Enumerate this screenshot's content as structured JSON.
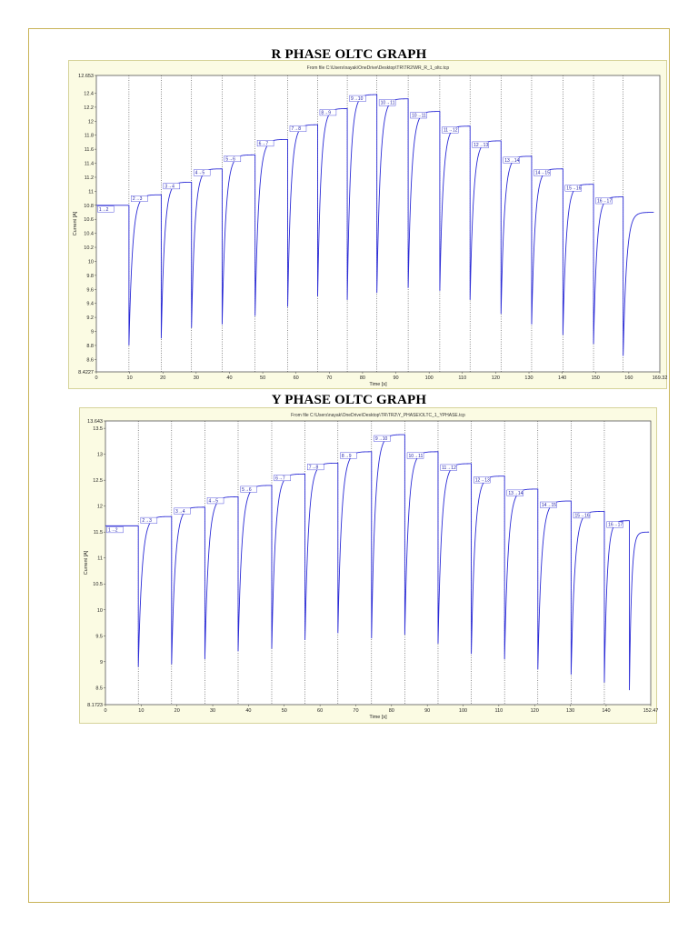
{
  "chart_data": [
    {
      "type": "line",
      "title": "R PHASE OLTC GRAPH",
      "subtitle": "From file C:\\Users\\nayak\\OneDrive\\Desktop\\TR\\TR2\\WR_R_1_oltc.tcp",
      "xlabel": "Time [s]",
      "ylabel": "Current [A]",
      "xlim": [
        0,
        169.32
      ],
      "ylim": [
        8.4227,
        12.653
      ],
      "x_ticks": [
        "0",
        "10",
        "20",
        "30",
        "40",
        "50",
        "60",
        "70",
        "80",
        "90",
        "100",
        "110",
        "120",
        "130",
        "140",
        "150",
        "160",
        "169.32"
      ],
      "x_tick_values": [
        0,
        10,
        20,
        30,
        40,
        50,
        60,
        70,
        80,
        90,
        100,
        110,
        120,
        130,
        140,
        150,
        160,
        169.32
      ],
      "y_ticks": [
        "8.4227",
        "8.6",
        "8.8",
        "9",
        "9.2",
        "9.4",
        "9.6",
        "9.8",
        "10",
        "10.2",
        "10.4",
        "10.6",
        "10.8",
        "11",
        "11.2",
        "11.4",
        "11.6",
        "11.8",
        "12",
        "12.2",
        "12.4",
        "12.653"
      ],
      "y_tick_values": [
        8.4227,
        8.6,
        8.8,
        9,
        9.2,
        9.4,
        9.6,
        9.8,
        10,
        10.2,
        10.4,
        10.6,
        10.8,
        11,
        11.2,
        11.4,
        11.6,
        11.8,
        12,
        12.2,
        12.4,
        12.653
      ],
      "grid": "vertical dotted at tap changes",
      "series_color": "#2b2bd6",
      "tap_change_times": [
        9.8,
        19.5,
        28.6,
        37.8,
        47.7,
        57.5,
        66.5,
        75.4,
        84.3,
        93.7,
        103.2,
        112.3,
        121.6,
        130.8,
        140.2,
        149.4,
        158.3
      ],
      "segments": [
        {
          "label": "1→2",
          "start": 0,
          "end": 9.8,
          "min": 10.8,
          "max": 10.8,
          "plateau": 10.8
        },
        {
          "label": "2→3",
          "start": 9.8,
          "end": 19.5,
          "min": 8.8,
          "max": 10.95,
          "plateau": 10.95
        },
        {
          "label": "3→4",
          "start": 19.5,
          "end": 28.6,
          "min": 8.9,
          "max": 11.13,
          "plateau": 11.13
        },
        {
          "label": "4→5",
          "start": 28.6,
          "end": 37.8,
          "min": 9.05,
          "max": 11.32,
          "plateau": 11.32
        },
        {
          "label": "5→6",
          "start": 37.8,
          "end": 47.7,
          "min": 9.1,
          "max": 11.52,
          "plateau": 11.52
        },
        {
          "label": "6→7",
          "start": 47.7,
          "end": 57.5,
          "min": 9.22,
          "max": 11.74,
          "plateau": 11.74
        },
        {
          "label": "7→8",
          "start": 57.5,
          "end": 66.5,
          "min": 9.35,
          "max": 11.95,
          "plateau": 11.95
        },
        {
          "label": "8→9",
          "start": 66.5,
          "end": 75.4,
          "min": 9.5,
          "max": 12.18,
          "plateau": 12.18
        },
        {
          "label": "9→10",
          "start": 75.4,
          "end": 84.3,
          "min": 9.45,
          "max": 12.38,
          "plateau": 12.38
        },
        {
          "label": "10→11",
          "start": 84.3,
          "end": 93.7,
          "min": 9.55,
          "max": 12.32,
          "plateau": 12.32
        },
        {
          "label": "10→11",
          "start": 93.7,
          "end": 103.2,
          "min": 9.62,
          "max": 12.14,
          "plateau": 12.14
        },
        {
          "label": "11→12",
          "start": 103.2,
          "end": 112.3,
          "min": 9.58,
          "max": 11.93,
          "plateau": 11.93
        },
        {
          "label": "12→13",
          "start": 112.3,
          "end": 121.6,
          "min": 9.45,
          "max": 11.72,
          "plateau": 11.72
        },
        {
          "label": "13→14",
          "start": 121.6,
          "end": 130.8,
          "min": 9.25,
          "max": 11.5,
          "plateau": 11.5
        },
        {
          "label": "14→15",
          "start": 130.8,
          "end": 140.2,
          "min": 9.1,
          "max": 11.32,
          "plateau": 11.32
        },
        {
          "label": "15→16",
          "start": 140.2,
          "end": 149.4,
          "min": 8.95,
          "max": 11.1,
          "plateau": 11.1
        },
        {
          "label": "16→17",
          "start": 149.4,
          "end": 158.3,
          "min": 8.82,
          "max": 10.92,
          "plateau": 10.92
        },
        {
          "label": "",
          "start": 158.3,
          "end": 167.5,
          "min": 8.65,
          "max": 10.7,
          "plateau": 10.7
        }
      ]
    },
    {
      "type": "line",
      "title": "Y PHASE OLTC GRAPH",
      "subtitle": "From file C:\\Users\\nayak\\OneDrive\\Desktop\\TR\\TR2\\Y_PHASE\\OLTC_1_YPHASE.tcp",
      "xlabel": "Time [s]",
      "ylabel": "Current [A]",
      "xlim": [
        0,
        152.47
      ],
      "ylim": [
        8.1723,
        13.643
      ],
      "x_ticks": [
        "0",
        "10",
        "20",
        "30",
        "40",
        "50",
        "60",
        "70",
        "80",
        "90",
        "100",
        "110",
        "120",
        "130",
        "140",
        "152.47"
      ],
      "x_tick_values": [
        0,
        10,
        20,
        30,
        40,
        50,
        60,
        70,
        80,
        90,
        100,
        110,
        120,
        130,
        140,
        152.47
      ],
      "y_ticks": [
        "8.1723",
        "8.5",
        "9",
        "9.5",
        "10",
        "10.5",
        "11",
        "11.5",
        "12",
        "12.5",
        "13",
        "13.5",
        "13.643"
      ],
      "y_tick_values": [
        8.1723,
        8.5,
        9,
        9.5,
        10,
        10.5,
        11,
        11.5,
        12,
        12.5,
        13,
        13.5,
        13.643
      ],
      "grid": "vertical dotted at tap changes",
      "series_color": "#2b2bd6",
      "tap_change_times": [
        9.2,
        18.5,
        27.8,
        37.1,
        46.5,
        55.8,
        65,
        74.4,
        83.7,
        93,
        102.3,
        111.6,
        120.9,
        130.2,
        139.5
      ],
      "segments": [
        {
          "label": "1→2",
          "start": 0,
          "end": 9.2,
          "min": 11.62,
          "max": 11.62,
          "plateau": 11.62
        },
        {
          "label": "2→3",
          "start": 9.2,
          "end": 18.5,
          "min": 8.9,
          "max": 11.8,
          "plateau": 11.8
        },
        {
          "label": "3→4",
          "start": 18.5,
          "end": 27.8,
          "min": 8.95,
          "max": 11.98,
          "plateau": 11.98
        },
        {
          "label": "4→5",
          "start": 27.8,
          "end": 37.1,
          "min": 9.05,
          "max": 12.18,
          "plateau": 12.18
        },
        {
          "label": "5→6",
          "start": 37.1,
          "end": 46.5,
          "min": 9.2,
          "max": 12.4,
          "plateau": 12.4
        },
        {
          "label": "6→7",
          "start": 46.5,
          "end": 55.8,
          "min": 9.25,
          "max": 12.62,
          "plateau": 12.62
        },
        {
          "label": "7→8",
          "start": 55.8,
          "end": 65,
          "min": 9.42,
          "max": 12.83,
          "plateau": 12.83
        },
        {
          "label": "8→9",
          "start": 65,
          "end": 74.4,
          "min": 9.55,
          "max": 13.05,
          "plateau": 13.05
        },
        {
          "label": "9→10",
          "start": 74.4,
          "end": 83.7,
          "min": 9.45,
          "max": 13.38,
          "plateau": 13.38
        },
        {
          "label": "10→11",
          "start": 83.7,
          "end": 93,
          "min": 9.52,
          "max": 13.05,
          "plateau": 13.05
        },
        {
          "label": "11→12",
          "start": 93,
          "end": 102.3,
          "min": 9.35,
          "max": 12.82,
          "plateau": 12.82
        },
        {
          "label": "12→13",
          "start": 102.3,
          "end": 111.6,
          "min": 9.15,
          "max": 12.58,
          "plateau": 12.58
        },
        {
          "label": "13→14",
          "start": 111.6,
          "end": 120.9,
          "min": 9.05,
          "max": 12.33,
          "plateau": 12.33
        },
        {
          "label": "14→15",
          "start": 120.9,
          "end": 130.2,
          "min": 8.85,
          "max": 12.1,
          "plateau": 12.1
        },
        {
          "label": "15→16",
          "start": 130.2,
          "end": 139.5,
          "min": 8.75,
          "max": 11.9,
          "plateau": 11.9
        },
        {
          "label": "16→17",
          "start": 139.5,
          "end": 146.5,
          "min": 8.6,
          "max": 11.72,
          "plateau": 11.72
        },
        {
          "label": "",
          "start": 146.5,
          "end": 152,
          "min": 8.45,
          "max": 11.5,
          "plateau": 11.5
        }
      ]
    }
  ]
}
